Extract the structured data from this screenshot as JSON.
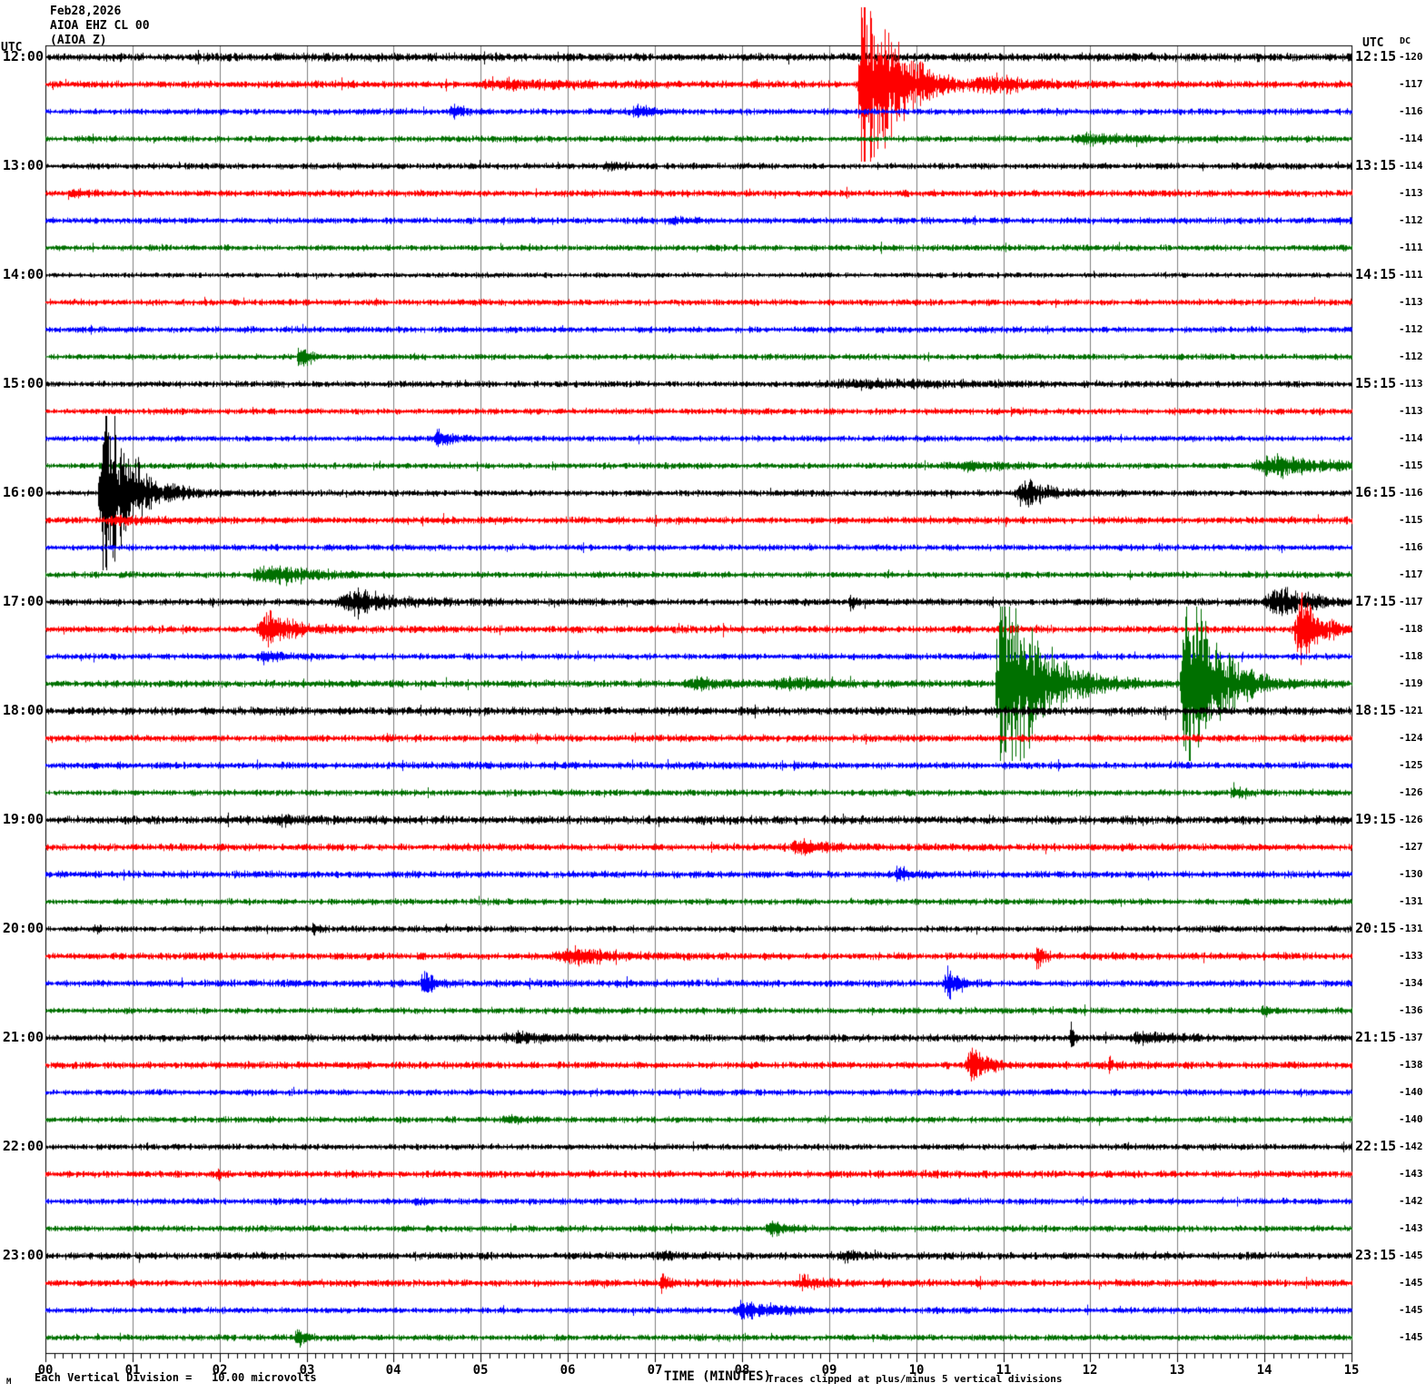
{
  "header": {
    "date": "Feb28,2026",
    "station": "AIOA EHZ CL 00",
    "channel": "(AIOA Z)"
  },
  "axis": {
    "left_utc": "UTC",
    "right_utc": "UTC",
    "dc_header": "DC",
    "x_ticks": [
      "00",
      "01",
      "02",
      "03",
      "04",
      "05",
      "06",
      "07",
      "08",
      "09",
      "10",
      "11",
      "12",
      "13",
      "14",
      "15"
    ],
    "xlabel": "TIME (MINUTES)",
    "scale_prefix": "M",
    "scale_note": "Each Vertical Division =   10.00 microvolts",
    "clip_note": "Traces clipped at plus/minus 5 vertical divisions"
  },
  "colors": {
    "black": "#000000",
    "red": "#ff0000",
    "blue": "#0000ff",
    "green": "#007000",
    "grid": "#808080",
    "border": "#000000"
  },
  "chart_data": {
    "type": "line",
    "subtype": "helicorder",
    "x_range_minutes": [
      0,
      15
    ],
    "minutes_per_row": 15,
    "microvolts_per_division": 10,
    "clip_divisions": 5,
    "rows": [
      {
        "left": "12:00",
        "right": "12:15",
        "dc": "-120",
        "color": "black",
        "noise": 3.4,
        "events": []
      },
      {
        "left": "",
        "right": "",
        "dc": "-117",
        "color": "red",
        "noise": 3.0,
        "events": [
          [
            4.9,
            6,
            0.4,
            0.8
          ],
          [
            9.32,
            160,
            0.06,
            0.38
          ],
          [
            10.6,
            10,
            0.3,
            0.5
          ]
        ]
      },
      {
        "left": "",
        "right": "",
        "dc": "-116",
        "color": "blue",
        "noise": 2.6,
        "events": [
          [
            4.62,
            10,
            0.06,
            0.12
          ],
          [
            6.72,
            8,
            0.08,
            0.15
          ]
        ]
      },
      {
        "left": "",
        "right": "",
        "dc": "-114",
        "color": "green",
        "noise": 2.6,
        "events": [
          [
            11.75,
            7,
            0.25,
            0.5
          ]
        ]
      },
      {
        "left": "13:00",
        "right": "13:15",
        "dc": "-114",
        "color": "black",
        "noise": 2.6,
        "events": [
          [
            6.35,
            4,
            0.1,
            0.2
          ]
        ]
      },
      {
        "left": "",
        "right": "",
        "dc": "-113",
        "color": "red",
        "noise": 2.8,
        "events": [
          [
            0.25,
            5,
            0.05,
            0.15
          ]
        ]
      },
      {
        "left": "",
        "right": "",
        "dc": "-112",
        "color": "blue",
        "noise": 2.6,
        "events": [
          [
            7.1,
            4,
            0.1,
            0.2
          ]
        ]
      },
      {
        "left": "",
        "right": "",
        "dc": "-111",
        "color": "green",
        "noise": 2.6,
        "events": []
      },
      {
        "left": "14:00",
        "right": "14:15",
        "dc": "-111",
        "color": "black",
        "noise": 2.2,
        "events": []
      },
      {
        "left": "",
        "right": "",
        "dc": "-113",
        "color": "red",
        "noise": 2.6,
        "events": []
      },
      {
        "left": "",
        "right": "",
        "dc": "-112",
        "color": "blue",
        "noise": 2.6,
        "events": []
      },
      {
        "left": "",
        "right": "",
        "dc": "-112",
        "color": "green",
        "noise": 2.5,
        "events": [
          [
            2.88,
            26,
            0.04,
            0.08
          ]
        ]
      },
      {
        "left": "15:00",
        "right": "15:15",
        "dc": "-113",
        "color": "black",
        "noise": 2.6,
        "events": [
          [
            8.7,
            5,
            0.6,
            1.4
          ]
        ]
      },
      {
        "left": "",
        "right": "",
        "dc": "-113",
        "color": "red",
        "noise": 2.6,
        "events": []
      },
      {
        "left": "",
        "right": "",
        "dc": "-114",
        "color": "blue",
        "noise": 2.5,
        "events": [
          [
            4.45,
            12,
            0.06,
            0.15
          ]
        ]
      },
      {
        "left": "",
        "right": "",
        "dc": "-115",
        "color": "green",
        "noise": 2.6,
        "events": [
          [
            10.25,
            6,
            0.3,
            0.5
          ],
          [
            13.85,
            16,
            0.25,
            0.6
          ]
        ]
      },
      {
        "left": "16:00",
        "right": "16:15",
        "dc": "-116",
        "color": "black",
        "noise": 2.6,
        "events": [
          [
            0.6,
            150,
            0.06,
            0.3
          ],
          [
            11.1,
            20,
            0.15,
            0.25
          ]
        ]
      },
      {
        "left": "",
        "right": "",
        "dc": "-115",
        "color": "red",
        "noise": 3.0,
        "events": [
          [
            0.7,
            6,
            0.1,
            0.4
          ]
        ]
      },
      {
        "left": "",
        "right": "",
        "dc": "-116",
        "color": "blue",
        "noise": 2.6,
        "events": []
      },
      {
        "left": "",
        "right": "",
        "dc": "-117",
        "color": "green",
        "noise": 2.6,
        "events": [
          [
            2.3,
            16,
            0.3,
            0.45
          ]
        ]
      },
      {
        "left": "17:00",
        "right": "17:15",
        "dc": "-117",
        "color": "black",
        "noise": 3.0,
        "events": [
          [
            3.3,
            20,
            0.25,
            0.35
          ],
          [
            9.22,
            13,
            0.02,
            0.05
          ],
          [
            13.95,
            20,
            0.2,
            0.4
          ]
        ]
      },
      {
        "left": "",
        "right": "",
        "dc": "-118",
        "color": "red",
        "noise": 3.0,
        "events": [
          [
            2.4,
            22,
            0.15,
            0.3
          ],
          [
            14.32,
            48,
            0.1,
            0.22
          ]
        ]
      },
      {
        "left": "",
        "right": "",
        "dc": "-118",
        "color": "blue",
        "noise": 2.6,
        "events": [
          [
            2.4,
            7,
            0.1,
            0.25
          ]
        ]
      },
      {
        "left": "",
        "right": "",
        "dc": "-119",
        "color": "green",
        "noise": 3.0,
        "events": [
          [
            7.3,
            9,
            0.2,
            0.35
          ],
          [
            8.3,
            8,
            0.2,
            0.4
          ],
          [
            10.9,
            170,
            0.07,
            0.4
          ],
          [
            13.02,
            150,
            0.06,
            0.35
          ]
        ]
      },
      {
        "left": "18:00",
        "right": "18:15",
        "dc": "-121",
        "color": "black",
        "noise": 3.4,
        "events": []
      },
      {
        "left": "",
        "right": "",
        "dc": "-124",
        "color": "red",
        "noise": 3.0,
        "events": []
      },
      {
        "left": "",
        "right": "",
        "dc": "-125",
        "color": "blue",
        "noise": 3.0,
        "events": []
      },
      {
        "left": "",
        "right": "",
        "dc": "-126",
        "color": "green",
        "noise": 2.6,
        "events": [
          [
            13.6,
            9,
            0.04,
            0.1
          ]
        ]
      },
      {
        "left": "19:00",
        "right": "19:15",
        "dc": "-126",
        "color": "black",
        "noise": 3.4,
        "events": [
          [
            2.55,
            5,
            0.15,
            0.3
          ]
        ]
      },
      {
        "left": "",
        "right": "",
        "dc": "-127",
        "color": "red",
        "noise": 3.0,
        "events": [
          [
            8.55,
            11,
            0.07,
            0.3
          ]
        ]
      },
      {
        "left": "",
        "right": "",
        "dc": "-130",
        "color": "blue",
        "noise": 3.0,
        "events": [
          [
            9.75,
            13,
            0.04,
            0.12
          ]
        ]
      },
      {
        "left": "",
        "right": "",
        "dc": "-131",
        "color": "green",
        "noise": 2.6,
        "events": []
      },
      {
        "left": "20:00",
        "right": "20:15",
        "dc": "-131",
        "color": "black",
        "noise": 2.6,
        "events": [
          [
            0.55,
            7,
            0.02,
            0.05
          ],
          [
            3.05,
            8,
            0.02,
            0.06
          ]
        ]
      },
      {
        "left": "",
        "right": "",
        "dc": "-133",
        "color": "red",
        "noise": 3.0,
        "events": [
          [
            5.75,
            10,
            0.3,
            0.5
          ],
          [
            11.35,
            24,
            0.03,
            0.07
          ]
        ]
      },
      {
        "left": "",
        "right": "",
        "dc": "-134",
        "color": "blue",
        "noise": 3.0,
        "events": [
          [
            4.3,
            20,
            0.04,
            0.1
          ],
          [
            10.3,
            28,
            0.06,
            0.12
          ]
        ]
      },
      {
        "left": "",
        "right": "",
        "dc": "-136",
        "color": "green",
        "noise": 2.6,
        "events": [
          [
            13.95,
            9,
            0.03,
            0.08
          ]
        ]
      },
      {
        "left": "21:00",
        "right": "21:15",
        "dc": "-137",
        "color": "black",
        "noise": 3.0,
        "events": [
          [
            5.2,
            7,
            0.2,
            0.4
          ],
          [
            11.76,
            32,
            0.015,
            0.03
          ],
          [
            12.45,
            9,
            0.15,
            0.3
          ]
        ]
      },
      {
        "left": "",
        "right": "",
        "dc": "-138",
        "color": "red",
        "noise": 3.0,
        "events": [
          [
            10.55,
            28,
            0.08,
            0.16
          ],
          [
            12.2,
            9,
            0.015,
            0.05
          ]
        ]
      },
      {
        "left": "",
        "right": "",
        "dc": "-140",
        "color": "blue",
        "noise": 2.6,
        "events": []
      },
      {
        "left": "",
        "right": "",
        "dc": "-140",
        "color": "green",
        "noise": 2.6,
        "events": [
          [
            5.2,
            5,
            0.1,
            0.2
          ]
        ]
      },
      {
        "left": "22:00",
        "right": "22:15",
        "dc": "-142",
        "color": "black",
        "noise": 2.6,
        "events": []
      },
      {
        "left": "",
        "right": "",
        "dc": "-143",
        "color": "red",
        "noise": 3.0,
        "events": [
          [
            1.95,
            11,
            0.02,
            0.05
          ]
        ]
      },
      {
        "left": "",
        "right": "",
        "dc": "-142",
        "color": "blue",
        "noise": 2.6,
        "events": [
          [
            4.2,
            6,
            0.04,
            0.1
          ]
        ]
      },
      {
        "left": "",
        "right": "",
        "dc": "-143",
        "color": "green",
        "noise": 2.6,
        "events": [
          [
            8.25,
            9,
            0.08,
            0.2
          ]
        ]
      },
      {
        "left": "23:00",
        "right": "23:15",
        "dc": "-145",
        "color": "black",
        "noise": 3.0,
        "events": [
          [
            7.0,
            5,
            0.1,
            0.2
          ],
          [
            9.1,
            7,
            0.08,
            0.2
          ]
        ]
      },
      {
        "left": "",
        "right": "",
        "dc": "-145",
        "color": "red",
        "noise": 3.0,
        "events": [
          [
            7.05,
            12,
            0.03,
            0.08
          ],
          [
            8.6,
            10,
            0.08,
            0.2
          ]
        ]
      },
      {
        "left": "",
        "right": "",
        "dc": "-145",
        "color": "blue",
        "noise": 2.6,
        "events": [
          [
            7.85,
            11,
            0.2,
            0.4
          ]
        ]
      },
      {
        "left": "",
        "right": "",
        "dc": "-145",
        "color": "green",
        "noise": 2.6,
        "events": [
          [
            2.85,
            18,
            0.03,
            0.07
          ]
        ]
      }
    ]
  }
}
